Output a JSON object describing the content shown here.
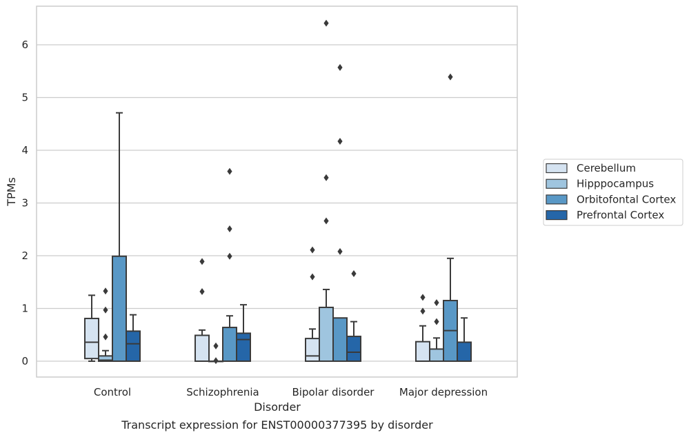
{
  "chart_data": {
    "type": "box",
    "xlabel": "Disorder",
    "ylabel": "TPMs",
    "caption": "Transcript expression for ENST00000377395 by disorder",
    "categories": [
      "Control",
      "Schizophrenia",
      "Bipolar disorder",
      "Major depression"
    ],
    "ylim": [
      -0.32,
      6.75
    ],
    "yticks": [
      0,
      1,
      2,
      3,
      4,
      5,
      6
    ],
    "grid": "horizontal",
    "legend_position": "right",
    "series": [
      {
        "name": "Cerebellum",
        "color": "#d5e3f1",
        "boxes": [
          {
            "whisker_low": 0.0,
            "q1": 0.05,
            "median": 0.36,
            "q3": 0.81,
            "whisker_high": 1.25,
            "outliers": []
          },
          {
            "whisker_low": 0.0,
            "q1": 0.0,
            "median": 0.0,
            "q3": 0.49,
            "whisker_high": 0.59,
            "outliers": [
              1.32,
              1.89
            ]
          },
          {
            "whisker_low": 0.0,
            "q1": 0.0,
            "median": 0.1,
            "q3": 0.43,
            "whisker_high": 0.61,
            "outliers": [
              1.6,
              2.11
            ]
          },
          {
            "whisker_low": 0.0,
            "q1": 0.0,
            "median": 0.0,
            "q3": 0.37,
            "whisker_high": 0.67,
            "outliers": [
              0.95,
              1.21
            ]
          }
        ]
      },
      {
        "name": "Hipppocampus",
        "color": "#9fc5df",
        "boxes": [
          {
            "whisker_low": 0.0,
            "q1": 0.0,
            "median": 0.02,
            "q3": 0.1,
            "whisker_high": 0.2,
            "outliers": [
              0.46,
              0.97,
              1.33
            ]
          },
          {
            "whisker_low": 0.0,
            "q1": 0.0,
            "median": 0.0,
            "q3": 0.0,
            "whisker_high": 0.0,
            "outliers": [
              0.01,
              0.29
            ]
          },
          {
            "whisker_low": 0.0,
            "q1": 0.0,
            "median": 0.0,
            "q3": 1.02,
            "whisker_high": 1.36,
            "outliers": [
              2.66,
              3.48,
              6.41
            ]
          },
          {
            "whisker_low": 0.0,
            "q1": 0.0,
            "median": 0.0,
            "q3": 0.23,
            "whisker_high": 0.44,
            "outliers": [
              0.75,
              1.11
            ]
          }
        ]
      },
      {
        "name": "Orbitofontal Cortex",
        "color": "#5998c6",
        "boxes": [
          {
            "whisker_low": 0.0,
            "q1": 0.0,
            "median": 0.0,
            "q3": 1.99,
            "whisker_high": 4.71,
            "outliers": []
          },
          {
            "whisker_low": 0.0,
            "q1": 0.0,
            "median": 0.0,
            "q3": 0.64,
            "whisker_high": 0.86,
            "outliers": [
              1.99,
              2.51,
              3.6
            ]
          },
          {
            "whisker_low": 0.0,
            "q1": 0.0,
            "median": 0.0,
            "q3": 0.82,
            "whisker_high": 0.82,
            "outliers": [
              2.08,
              4.17,
              5.57
            ]
          },
          {
            "whisker_low": 0.0,
            "q1": 0.0,
            "median": 0.58,
            "q3": 1.15,
            "whisker_high": 1.95,
            "outliers": [
              5.39
            ]
          }
        ]
      },
      {
        "name": "Prefrontal Cortex",
        "color": "#2566a8",
        "boxes": [
          {
            "whisker_low": 0.0,
            "q1": 0.0,
            "median": 0.33,
            "q3": 0.57,
            "whisker_high": 0.88,
            "outliers": []
          },
          {
            "whisker_low": 0.0,
            "q1": 0.0,
            "median": 0.41,
            "q3": 0.53,
            "whisker_high": 1.07,
            "outliers": []
          },
          {
            "whisker_low": 0.0,
            "q1": 0.0,
            "median": 0.17,
            "q3": 0.47,
            "whisker_high": 0.75,
            "outliers": [
              1.66
            ]
          },
          {
            "whisker_low": 0.0,
            "q1": 0.0,
            "median": 0.0,
            "q3": 0.36,
            "whisker_high": 0.82,
            "outliers": []
          }
        ]
      }
    ]
  }
}
